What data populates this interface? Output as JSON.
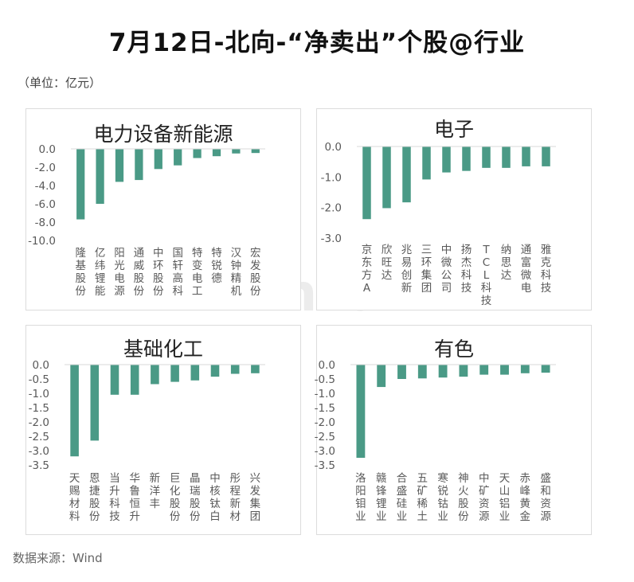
{
  "title": "7月12日-北向-“净卖出”个股@行业",
  "unit_note": "（单位：亿元）",
  "source_note": "数据来源：Wind",
  "watermark": "Win.d",
  "colors": {
    "bar": "#4a9a86",
    "axis": "#d9d9d9",
    "text": "#595959"
  },
  "chart_data": [
    {
      "type": "bar",
      "title": "电力设备新能源",
      "categories": [
        "隆基股份",
        "亿纬锂能",
        "阳光电源",
        "通威股份",
        "中环股份",
        "国轩高科",
        "特变电工",
        "特锐德",
        "汉钟精机",
        "宏发股份"
      ],
      "values": [
        -7.7,
        -6.0,
        -3.6,
        -3.4,
        -2.2,
        -1.8,
        -1.0,
        -0.8,
        -0.5,
        -0.45
      ],
      "ylim": [
        -10.0,
        0.0
      ],
      "yticks": [
        "0.0",
        "-2.0",
        "-4.0",
        "-6.0",
        "-8.0",
        "-10.0"
      ],
      "xlabel": "",
      "ylabel": "",
      "grid": false
    },
    {
      "type": "bar",
      "title": "电子",
      "categories": [
        "京东方A",
        "欣旺达",
        "兆易创新",
        "三环集团",
        "中微公司",
        "扬杰科技",
        "TCL科技",
        "纳思达",
        "通富微电",
        "雅克科技"
      ],
      "values": [
        -2.38,
        -2.02,
        -1.83,
        -1.08,
        -0.85,
        -0.8,
        -0.7,
        -0.7,
        -0.65,
        -0.65
      ],
      "ylim": [
        -3.0,
        0.0
      ],
      "yticks": [
        "0.0",
        "-1.0",
        "-2.0",
        "-3.0"
      ],
      "xlabel": "",
      "ylabel": "",
      "grid": false
    },
    {
      "type": "bar",
      "title": "基础化工",
      "categories": [
        "天赐材料",
        "恩捷股份",
        "当升科技",
        "华鲁恒升",
        "新洋丰",
        "巨化股份",
        "晶瑞股份",
        "中核钛白",
        "彤程新材",
        "兴发集团"
      ],
      "values": [
        -3.2,
        -2.65,
        -1.05,
        -1.05,
        -0.68,
        -0.6,
        -0.55,
        -0.42,
        -0.32,
        -0.3
      ],
      "ylim": [
        -3.5,
        0.0
      ],
      "yticks": [
        "0.0",
        "-0.5",
        "-1.0",
        "-1.5",
        "-2.0",
        "-2.5",
        "-3.0",
        "-3.5"
      ],
      "xlabel": "",
      "ylabel": "",
      "grid": false
    },
    {
      "type": "bar",
      "title": "有色",
      "categories": [
        "洛阳钼业",
        "赣锋锂业",
        "合盛硅业",
        "五矿稀土",
        "寒锐钴业",
        "神火股份",
        "中矿资源",
        "天山铝业",
        "赤峰黄金",
        "盛和资源"
      ],
      "values": [
        -3.25,
        -0.78,
        -0.5,
        -0.48,
        -0.45,
        -0.42,
        -0.35,
        -0.35,
        -0.3,
        -0.28
      ],
      "ylim": [
        -3.5,
        0.0
      ],
      "yticks": [
        "0.0",
        "-0.5",
        "-1.0",
        "-1.5",
        "-2.0",
        "-2.5",
        "-3.0",
        "-3.5"
      ],
      "xlabel": "",
      "ylabel": "",
      "grid": false
    }
  ]
}
